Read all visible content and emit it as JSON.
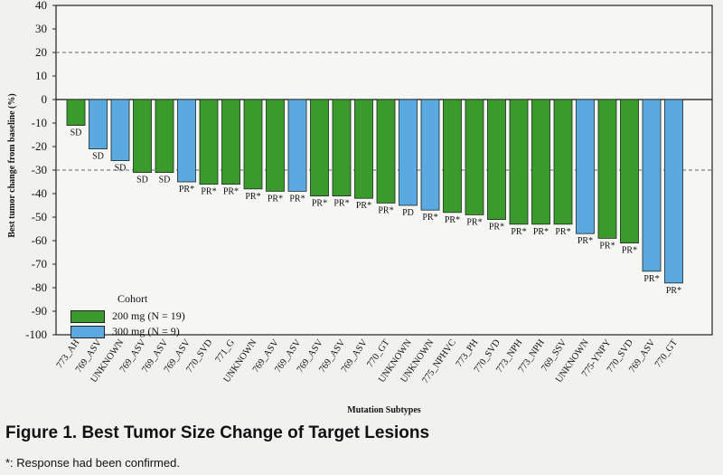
{
  "figure": {
    "title": "Figure 1. Best Tumor Size Change of Target Lesions",
    "note": "*: Response had been confirmed."
  },
  "chart_data": {
    "type": "bar",
    "ylabel": "Best tumor change from baseline (%)",
    "xlabel": "Mutation Subtypes",
    "ylim": [
      -100,
      40
    ],
    "yticks": [
      40,
      30,
      20,
      10,
      0,
      -10,
      -20,
      -30,
      -40,
      -50,
      -60,
      -70,
      -80,
      -90,
      -100
    ],
    "reference_lines": [
      20,
      -30
    ],
    "legend": {
      "title": "Cohort",
      "position": "bottom-left",
      "entries": [
        {
          "label": "200 mg (N = 19)",
          "color": "#3a9b2c"
        },
        {
          "label": "300 mg (N = 9)",
          "color": "#5aa9e0"
        }
      ]
    },
    "categories": [
      "773_AH",
      "769_ASV",
      "UNKNOWN",
      "769_ASV",
      "769_ASV",
      "769_ASV",
      "770_SVD",
      "771_G",
      "UNKNOWN",
      "769_ASV",
      "769_ASV",
      "769_ASV",
      "769_ASV",
      "769_ASV",
      "770_GT",
      "UNKNOWN",
      "UNKNOWN",
      "775_NPHVC",
      "773_PH",
      "770_SVD",
      "773_NPH",
      "773_NPH",
      "769_SSV",
      "UNKNOWN",
      "775-YNPY",
      "770_SVD",
      "769_ASV",
      "770_GT"
    ],
    "values": [
      -11,
      -21,
      -26,
      -31,
      -31,
      -35,
      -36,
      -36,
      -38,
      -39,
      -39,
      -41,
      -41,
      -42,
      -44,
      -45,
      -47,
      -48,
      -49,
      -51,
      -53,
      -53,
      -53,
      -57,
      -59,
      -61,
      -73,
      -78
    ],
    "cohort": [
      200,
      300,
      300,
      200,
      200,
      300,
      200,
      200,
      200,
      200,
      300,
      200,
      200,
      200,
      200,
      300,
      300,
      200,
      200,
      200,
      200,
      200,
      200,
      300,
      200,
      200,
      300,
      300
    ],
    "labels": [
      "SD",
      "SD",
      "SD",
      "SD",
      "SD",
      "PR*",
      "PR*",
      "PR*",
      "PR*",
      "PR*",
      "PR*",
      "PR*",
      "PR*",
      "PR*",
      "PR*",
      "PD",
      "PR*",
      "PR*",
      "PR*",
      "PR*",
      "PR*",
      "PR*",
      "PR*",
      "PR*",
      "PR*",
      "PR*",
      "PR*",
      "PR*"
    ]
  }
}
